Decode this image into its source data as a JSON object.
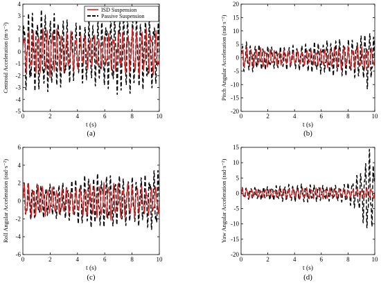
{
  "colors": {
    "isd": "#e41a1c",
    "passive": "#000000",
    "axis": "#000000"
  },
  "chart_data": [
    {
      "type": "line",
      "panel_label": "(a)",
      "xlabel": "t (s)",
      "ylabel": "Centroid Acceleration (m·s⁻²)",
      "xlim": [
        0,
        10
      ],
      "ylim": [
        -5,
        4
      ],
      "xticks": [
        0,
        2,
        4,
        6,
        8,
        10
      ],
      "yticks": [
        -5,
        -4,
        -3,
        -2,
        -1,
        0,
        1,
        2,
        3,
        4
      ],
      "legend": {
        "placement": "top-right",
        "entries": [
          "ISD Suspension",
          "Passive Suspension"
        ]
      },
      "series": [
        {
          "name": "ISD Suspension",
          "style": "solid",
          "x": [
            0,
            0.5,
            1,
            1.5,
            2,
            2.5,
            3,
            3.5,
            4,
            4.5,
            5,
            5.5,
            6,
            6.5,
            7,
            7.5,
            8,
            8.5,
            9,
            9.5,
            10
          ],
          "envelope": [
            2.0,
            2.1,
            1.9,
            2.0,
            2.2,
            2.0,
            1.9,
            2.1,
            2.0,
            2.0,
            2.1,
            1.9,
            2.0,
            2.1,
            2.0,
            1.9,
            2.1,
            2.0,
            2.0,
            2.1,
            2.0
          ]
        },
        {
          "name": "Passive Suspension",
          "style": "dashed",
          "x": [
            0,
            0.5,
            1,
            1.5,
            2,
            2.5,
            3,
            3.5,
            4,
            4.5,
            5,
            5.5,
            6,
            6.5,
            7,
            7.5,
            8,
            8.5,
            9,
            9.5,
            10
          ],
          "envelope": [
            3.2,
            3.5,
            3.4,
            3.8,
            3.6,
            3.9,
            3.7,
            3.8,
            3.5,
            3.9,
            3.6,
            3.8,
            3.5,
            3.7,
            3.8,
            3.6,
            3.5,
            3.4,
            3.6,
            3.8,
            3.5
          ]
        }
      ]
    },
    {
      "type": "line",
      "panel_label": "(b)",
      "xlabel": "t (s)",
      "ylabel": "Pitch Angular Acceleration (rad·s⁻²)",
      "xlim": [
        0,
        10
      ],
      "ylim": [
        -20,
        20
      ],
      "xticks": [
        0,
        2,
        4,
        6,
        8,
        10
      ],
      "yticks": [
        -20,
        -15,
        -10,
        -5,
        0,
        5,
        10,
        15,
        20
      ],
      "series": [
        {
          "name": "ISD Suspension",
          "style": "solid",
          "x": [
            0,
            0.5,
            1,
            1.5,
            2,
            2.5,
            3,
            3.5,
            4,
            4.5,
            5,
            5.5,
            6,
            6.5,
            7,
            7.5,
            8,
            8.5,
            9,
            9.5,
            10
          ],
          "envelope": [
            4,
            4,
            3.5,
            4,
            4,
            3.5,
            4,
            4,
            3.5,
            4,
            4,
            3.5,
            4,
            4,
            4,
            4.5,
            4.5,
            4.5,
            5,
            5,
            4.5
          ]
        },
        {
          "name": "Passive Suspension",
          "style": "dashed",
          "x": [
            0,
            0.5,
            1,
            1.5,
            2,
            2.5,
            3,
            3.5,
            4,
            4.5,
            5,
            5.5,
            6,
            6.5,
            7,
            7.5,
            8,
            8.5,
            9,
            9.5,
            10
          ],
          "envelope": [
            6,
            6,
            5.5,
            6,
            6,
            5.5,
            6,
            6.5,
            6,
            6,
            6,
            6.5,
            6,
            6.5,
            7,
            7.5,
            8,
            9,
            11,
            17,
            10
          ]
        }
      ]
    },
    {
      "type": "line",
      "panel_label": "(c)",
      "xlabel": "t (s)",
      "ylabel": "Roll Angular Acceleration (rad·s⁻²)",
      "xlim": [
        0,
        10
      ],
      "ylim": [
        -6,
        6
      ],
      "xticks": [
        0,
        2,
        4,
        6,
        8,
        10
      ],
      "yticks": [
        -6,
        -4,
        -2,
        0,
        2,
        4,
        6
      ],
      "series": [
        {
          "name": "ISD Suspension",
          "style": "solid",
          "x": [
            0,
            0.5,
            1,
            1.5,
            2,
            2.5,
            3,
            3.5,
            4,
            4.5,
            5,
            5.5,
            6,
            6.5,
            7,
            7.5,
            8,
            8.5,
            9,
            9.5,
            10
          ],
          "envelope": [
            2.2,
            2.1,
            2.0,
            2.2,
            2.1,
            2.0,
            2.2,
            2.1,
            2.0,
            2.1,
            2.2,
            2.0,
            2.1,
            2.2,
            2.0,
            2.1,
            2.2,
            2.1,
            2.2,
            2.3,
            2.2
          ]
        },
        {
          "name": "Passive Suspension",
          "style": "dashed",
          "x": [
            0,
            0.5,
            1,
            1.5,
            2,
            2.5,
            3,
            3.5,
            4,
            4.5,
            5,
            5.5,
            6,
            6.5,
            7,
            7.5,
            8,
            8.5,
            9,
            9.5,
            10
          ],
          "envelope": [
            2.5,
            2.6,
            2.5,
            2.7,
            2.6,
            2.8,
            2.7,
            2.8,
            2.9,
            3.0,
            3.0,
            3.1,
            3.0,
            3.2,
            3.3,
            3.5,
            3.6,
            4.0,
            4.3,
            4.8,
            5.0
          ]
        }
      ]
    },
    {
      "type": "line",
      "panel_label": "(d)",
      "xlabel": "t (s)",
      "ylabel": "Yaw Angular Acceleration (rad·s⁻²)",
      "xlim": [
        0,
        10
      ],
      "ylim": [
        -20,
        15
      ],
      "xticks": [
        0,
        2,
        4,
        6,
        8,
        10
      ],
      "yticks": [
        -20,
        -15,
        -10,
        -5,
        0,
        5,
        10,
        15
      ],
      "series": [
        {
          "name": "ISD Suspension",
          "style": "solid",
          "x": [
            0,
            0.5,
            1,
            1.5,
            2,
            2.5,
            3,
            3.5,
            4,
            4.5,
            5,
            5.5,
            6,
            6.5,
            7,
            7.5,
            8,
            8.5,
            9,
            9.5,
            10
          ],
          "envelope": [
            2,
            2,
            1.8,
            2,
            2,
            1.8,
            2,
            2,
            1.8,
            2,
            2,
            1.8,
            2,
            2,
            2,
            2,
            2,
            2,
            2.2,
            2.5,
            2.2
          ]
        },
        {
          "name": "Passive Suspension",
          "style": "dashed",
          "x": [
            0,
            0.5,
            1,
            1.5,
            2,
            2.5,
            3,
            3.5,
            4,
            4.5,
            5,
            5.5,
            6,
            6.5,
            7,
            7.5,
            8,
            8.5,
            9,
            9.5,
            10
          ],
          "envelope": [
            2.5,
            2.8,
            2.6,
            3,
            2.8,
            3,
            2.8,
            3,
            2.8,
            3,
            3,
            3,
            3,
            3.2,
            3.5,
            4,
            5,
            7,
            10,
            18,
            12
          ]
        }
      ]
    }
  ]
}
